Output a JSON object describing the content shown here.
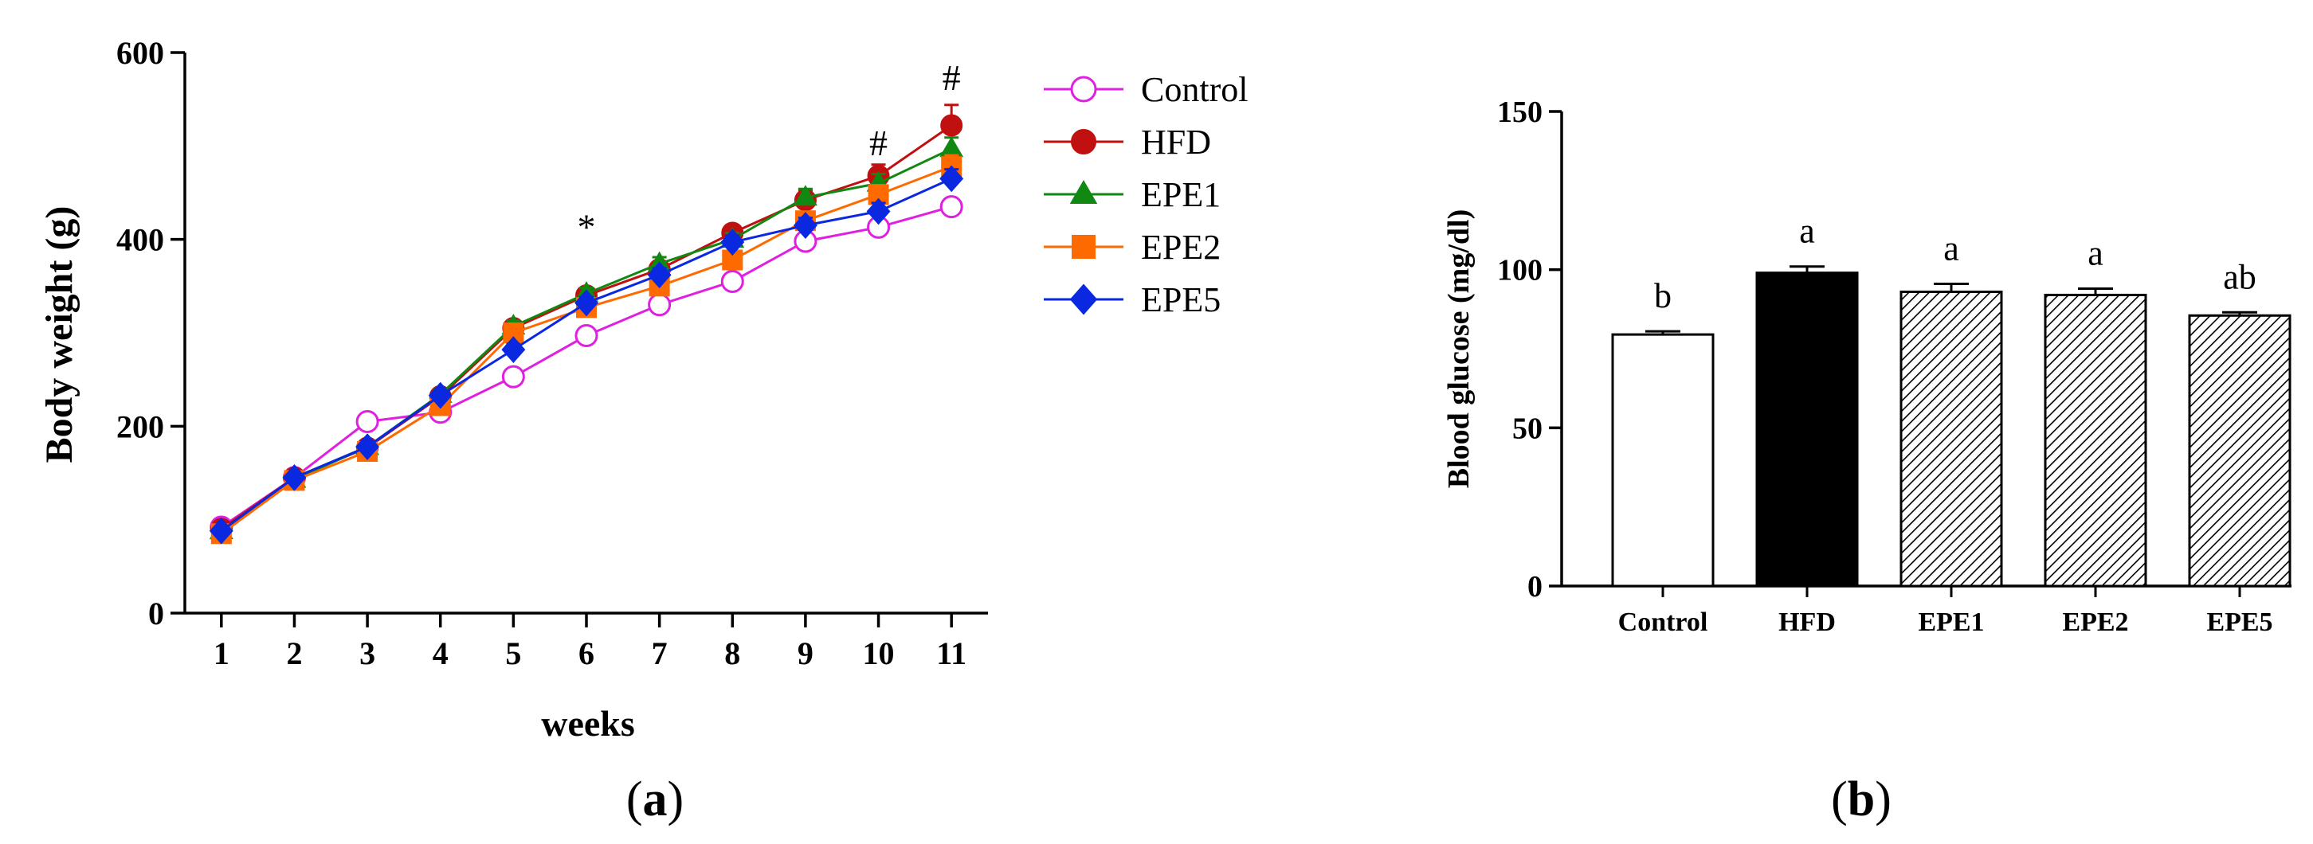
{
  "panel_a": {
    "label_open": "(",
    "label_letter": "a",
    "label_close": ")"
  },
  "panel_b": {
    "label_open": "(",
    "label_letter": "b",
    "label_close": ")"
  },
  "chart_data": [
    {
      "type": "line",
      "title": "",
      "xlabel": "weeks",
      "ylabel": "Body weight (g)",
      "x": [
        1,
        2,
        3,
        4,
        5,
        6,
        7,
        8,
        9,
        10,
        11
      ],
      "xlim": [
        0.5,
        11.5
      ],
      "ylim": [
        0,
        600
      ],
      "yticks": [
        0,
        200,
        400,
        600
      ],
      "legend_position": "right",
      "series": [
        {
          "name": "Control",
          "color": "#e020e0",
          "marker": "open-circle",
          "values": [
            92,
            145,
            205,
            215,
            253,
            297,
            330,
            355,
            398,
            413,
            435
          ],
          "errors": [
            4,
            4,
            5,
            5,
            5,
            6,
            6,
            6,
            7,
            7,
            8
          ]
        },
        {
          "name": "HFD",
          "color": "#c01010",
          "marker": "filled-circle",
          "values": [
            90,
            145,
            177,
            232,
            305,
            340,
            368,
            407,
            442,
            468,
            522
          ],
          "errors": [
            4,
            4,
            5,
            5,
            6,
            6,
            7,
            7,
            10,
            12,
            22
          ]
        },
        {
          "name": "EPE1",
          "color": "#118811",
          "marker": "triangle",
          "values": [
            88,
            143,
            178,
            234,
            307,
            342,
            374,
            400,
            445,
            460,
            497
          ],
          "errors": [
            4,
            4,
            5,
            5,
            6,
            6,
            7,
            7,
            9,
            10,
            12
          ]
        },
        {
          "name": "EPE2",
          "color": "#ff6a00",
          "marker": "square",
          "values": [
            85,
            142,
            173,
            222,
            300,
            327,
            350,
            378,
            420,
            448,
            478
          ],
          "errors": [
            4,
            4,
            5,
            5,
            6,
            6,
            7,
            7,
            9,
            10,
            12
          ]
        },
        {
          "name": "EPE5",
          "color": "#0a28e0",
          "marker": "diamond",
          "values": [
            88,
            145,
            178,
            233,
            282,
            332,
            362,
            397,
            415,
            430,
            465
          ],
          "errors": [
            4,
            4,
            5,
            5,
            6,
            6,
            7,
            7,
            8,
            9,
            10
          ]
        }
      ],
      "annotations": [
        {
          "x": 6,
          "y": 400,
          "text": "*"
        },
        {
          "x": 10,
          "y": 490,
          "text": "#"
        },
        {
          "x": 11,
          "y": 560,
          "text": "#"
        }
      ]
    },
    {
      "type": "bar",
      "title": "",
      "xlabel": "",
      "ylabel": "Blood glucose (mg/dl)",
      "categories": [
        "Control",
        "HFD",
        "EPE1",
        "EPE2",
        "EPE5"
      ],
      "values": [
        79.5,
        99,
        93,
        92,
        85.5
      ],
      "errors": [
        1,
        2,
        2.5,
        2,
        1
      ],
      "fills": [
        "white",
        "black",
        "hatch",
        "hatch",
        "hatch"
      ],
      "significance": [
        "b",
        "a",
        "a",
        "a",
        "ab"
      ],
      "ylim": [
        0,
        150
      ],
      "yticks": [
        0,
        50,
        100,
        150
      ]
    }
  ]
}
